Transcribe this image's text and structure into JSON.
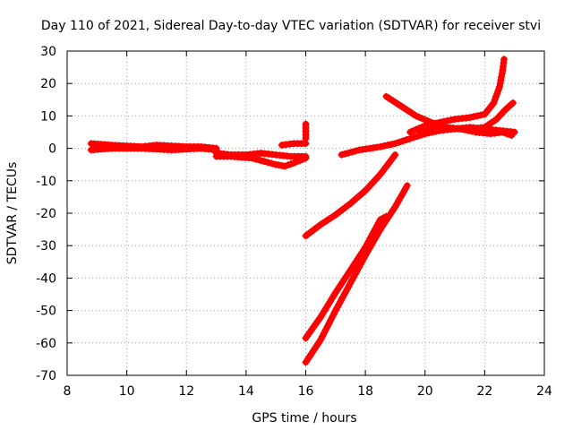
{
  "chart_data": {
    "type": "scatter",
    "title": "Day 110 of 2021, Sidereal Day-to-day VTEC variation (SDTVAR) for receiver stvi",
    "xlabel": "GPS time / hours",
    "ylabel": "SDTVAR / TECUs",
    "xlim": [
      8,
      24
    ],
    "ylim": [
      -70,
      30
    ],
    "xticks": [
      8,
      10,
      12,
      14,
      16,
      18,
      20,
      22,
      24
    ],
    "yticks": [
      -70,
      -60,
      -50,
      -40,
      -30,
      -20,
      -10,
      0,
      10,
      20,
      30
    ],
    "grid": true,
    "marker": "plus",
    "color": "#ff0000",
    "tracks": [
      [
        [
          8.8,
          1.5
        ],
        [
          9.5,
          1.0
        ],
        [
          10.5,
          0.5
        ],
        [
          11.0,
          1.0
        ],
        [
          12.0,
          0.5
        ],
        [
          12.5,
          0.5
        ],
        [
          13.0,
          0.0
        ]
      ],
      [
        [
          8.8,
          -0.5
        ],
        [
          9.5,
          0.0
        ],
        [
          10.5,
          0.0
        ],
        [
          11.5,
          -0.5
        ],
        [
          12.5,
          0.0
        ],
        [
          13.0,
          -0.5
        ]
      ],
      [
        [
          13.0,
          -1.5
        ],
        [
          13.5,
          -2.0
        ],
        [
          14.0,
          -2.0
        ],
        [
          14.5,
          -1.5
        ],
        [
          15.0,
          -2.0
        ],
        [
          15.5,
          -2.5
        ],
        [
          16.0,
          -2.5
        ]
      ],
      [
        [
          13.0,
          -2.5
        ],
        [
          13.5,
          -2.5
        ],
        [
          14.2,
          -3.0
        ],
        [
          14.6,
          -4.0
        ],
        [
          15.0,
          -5.0
        ],
        [
          15.3,
          -5.5
        ],
        [
          15.6,
          -4.5
        ],
        [
          16.0,
          -3.0
        ]
      ],
      [
        [
          15.2,
          1.0
        ],
        [
          15.6,
          1.5
        ],
        [
          16.0,
          1.5
        ]
      ],
      [
        [
          16.0,
          3.0
        ],
        [
          16.0,
          7.5
        ]
      ],
      [
        [
          16.0,
          -27.0
        ],
        [
          16.5,
          -23.5
        ],
        [
          17.0,
          -20.5
        ],
        [
          17.5,
          -17.0
        ],
        [
          18.0,
          -13.0
        ],
        [
          18.5,
          -8.0
        ],
        [
          19.0,
          -2.0
        ]
      ],
      [
        [
          17.2,
          -2.0
        ],
        [
          17.8,
          -0.5
        ],
        [
          18.5,
          0.5
        ],
        [
          19.0,
          1.5
        ],
        [
          19.5,
          3.0
        ],
        [
          20.0,
          4.5
        ],
        [
          20.5,
          5.5
        ],
        [
          21.0,
          6.0
        ],
        [
          21.5,
          6.5
        ],
        [
          22.0,
          6.0
        ],
        [
          22.5,
          5.5
        ],
        [
          23.0,
          5.0
        ]
      ],
      [
        [
          16.0,
          -58.5
        ],
        [
          16.5,
          -52.0
        ],
        [
          17.0,
          -44.5
        ],
        [
          17.5,
          -37.5
        ],
        [
          18.0,
          -30.5
        ],
        [
          18.5,
          -22.0
        ],
        [
          18.7,
          -21.0
        ]
      ],
      [
        [
          16.0,
          -66.0
        ],
        [
          16.5,
          -59.0
        ],
        [
          17.0,
          -50.0
        ],
        [
          17.5,
          -41.5
        ],
        [
          18.0,
          -33.0
        ],
        [
          18.5,
          -25.0
        ],
        [
          19.0,
          -18.0
        ],
        [
          19.4,
          -11.5
        ]
      ],
      [
        [
          18.7,
          16.0
        ],
        [
          19.2,
          13.0
        ],
        [
          19.7,
          10.0
        ],
        [
          20.2,
          8.0
        ],
        [
          20.7,
          6.5
        ],
        [
          21.2,
          6.0
        ],
        [
          21.7,
          5.0
        ],
        [
          22.2,
          4.5
        ],
        [
          22.6,
          5.0
        ],
        [
          22.9,
          4.0
        ]
      ],
      [
        [
          19.5,
          5.0
        ],
        [
          20.0,
          7.0
        ],
        [
          20.5,
          8.0
        ],
        [
          21.0,
          9.0
        ],
        [
          21.5,
          9.5
        ],
        [
          22.0,
          10.5
        ],
        [
          22.3,
          14.0
        ],
        [
          22.5,
          19.0
        ],
        [
          22.6,
          24.0
        ],
        [
          22.65,
          27.5
        ]
      ],
      [
        [
          19.8,
          5.5
        ],
        [
          20.5,
          6.0
        ],
        [
          21.0,
          6.0
        ],
        [
          21.5,
          6.0
        ],
        [
          22.0,
          6.5
        ],
        [
          22.4,
          9.0
        ],
        [
          22.7,
          12.0
        ],
        [
          22.95,
          14.0
        ]
      ]
    ]
  }
}
